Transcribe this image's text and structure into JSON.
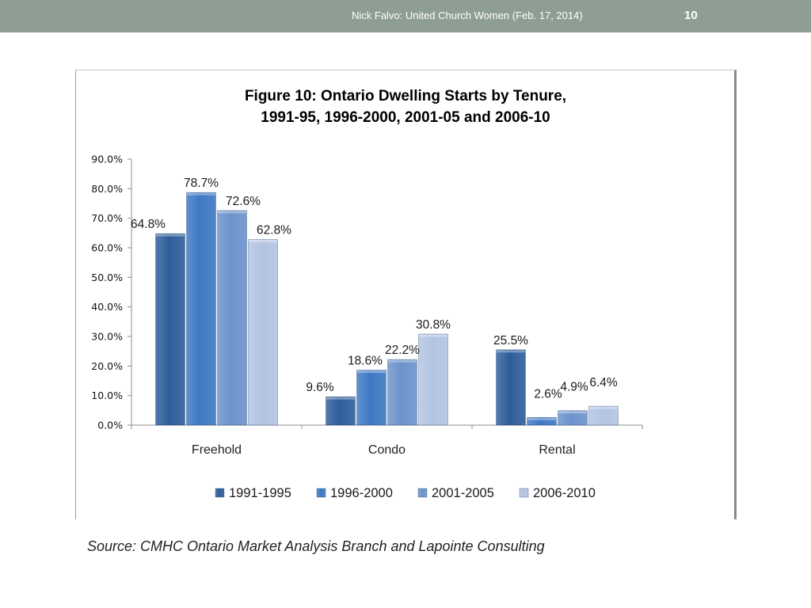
{
  "header": {
    "text": "Nick Falvo:  United Church Women (Feb. 17, 2014)",
    "slide_number": "10",
    "bar_color": "#8f9e95"
  },
  "source": "Source:  CMHC Ontario Market Analysis Branch and Lapointe Consulting",
  "chart_data": {
    "type": "bar",
    "title": [
      "Figure 10: Ontario Dwelling Starts by Tenure,",
      "1991-95, 1996-2000, 2001-05 and 2006-10"
    ],
    "categories": [
      "Freehold",
      "Condo",
      "Rental"
    ],
    "series": [
      {
        "name": "1991-1995",
        "values": [
          64.8,
          9.6,
          25.5
        ],
        "labels": [
          "64.8%",
          "9.6%",
          "25.5%"
        ],
        "color": "#2f5d9b"
      },
      {
        "name": "1996-2000",
        "values": [
          78.7,
          18.6,
          2.6
        ],
        "labels": [
          "78.7%",
          "18.6%",
          "2.6%"
        ],
        "color": "#3f78c4"
      },
      {
        "name": "2001-2005",
        "values": [
          72.6,
          22.2,
          4.9
        ],
        "labels": [
          "72.6%",
          "22.2%",
          "4.9%"
        ],
        "color": "#6c93cc"
      },
      {
        "name": "2006-2010",
        "values": [
          62.8,
          30.8,
          6.4
        ],
        "labels": [
          "62.8%",
          "30.8%",
          "6.4%"
        ],
        "color": "#b3c4e2"
      }
    ],
    "yticks": [
      "0.0%",
      "10.0%",
      "20.0%",
      "30.0%",
      "40.0%",
      "50.0%",
      "60.0%",
      "70.0%",
      "80.0%",
      "90.0%"
    ],
    "ylim": [
      0,
      90
    ],
    "grid": false,
    "legend_position": "bottom"
  }
}
